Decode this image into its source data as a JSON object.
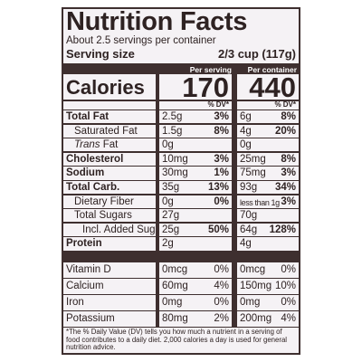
{
  "header": {
    "title": "Nutrition Facts",
    "servings": "About 2.5 servings per container",
    "serving_size_label": "Serving size",
    "serving_size": "2/3 cup (117g)"
  },
  "calories": {
    "label": "Calories",
    "per_serving_header": "Per serving",
    "per_container_header": "Per container",
    "per_serving": "170",
    "per_container": "440"
  },
  "dv_header": "% DV*",
  "nutrients": [
    {
      "name": "Total Fat",
      "bold": true,
      "indent": 0,
      "serving_amount": "2.5g",
      "serving_dv": "3%",
      "container_amount": "6g",
      "container_dv": "8%"
    },
    {
      "name": "Saturated Fat",
      "bold": false,
      "indent": 1,
      "serving_amount": "1.5g",
      "serving_dv": "8%",
      "container_amount": "4g",
      "container_dv": "20%"
    },
    {
      "name": "Trans Fat",
      "bold": false,
      "indent": 1,
      "italic_first_word": true,
      "serving_amount": "0g",
      "container_amount": "0g"
    },
    {
      "name": "Cholesterol",
      "bold": true,
      "indent": 0,
      "serving_amount": "10mg",
      "serving_dv": "3%",
      "container_amount": "25mg",
      "container_dv": "8%"
    },
    {
      "name": "Sodium",
      "bold": true,
      "indent": 0,
      "serving_amount": "30mg",
      "serving_dv": "1%",
      "container_amount": "75mg",
      "container_dv": "3%"
    },
    {
      "name": "Total Carb.",
      "bold": true,
      "indent": 0,
      "serving_amount": "35g",
      "serving_dv": "13%",
      "container_amount": "93g",
      "container_dv": "34%"
    },
    {
      "name": "Dietary Fiber",
      "bold": false,
      "indent": 1,
      "serving_amount": "0g",
      "serving_dv": "0%",
      "container_amount": "less than 1g",
      "container_dv": "3%"
    },
    {
      "name": "Total Sugars",
      "bold": false,
      "indent": 1,
      "serving_amount": "27g",
      "container_amount": "70g"
    },
    {
      "name": "Incl. Added Sugars",
      "bold": false,
      "indent": 2,
      "serving_amount": "25g",
      "serving_dv": "50%",
      "container_amount": "64g",
      "container_dv": "128%"
    },
    {
      "name": "Protein",
      "bold": true,
      "indent": 0,
      "serving_amount": "2g",
      "container_amount": "4g"
    }
  ],
  "vitamins": [
    {
      "name": "Vitamin D",
      "serving_amount": "0mcg",
      "serving_dv": "0%",
      "container_amount": "0mcg",
      "container_dv": "0%"
    },
    {
      "name": "Calcium",
      "serving_amount": "60mg",
      "serving_dv": "4%",
      "container_amount": "150mg",
      "container_dv": "10%"
    },
    {
      "name": "Iron",
      "serving_amount": "0mg",
      "serving_dv": "0%",
      "container_amount": "0mg",
      "container_dv": "0%"
    },
    {
      "name": "Potassium",
      "serving_amount": "80mg",
      "serving_dv": "2%",
      "container_amount": "200mg",
      "container_dv": "4%"
    }
  ],
  "footnote": "*The % Daily Value (DV) tells you how much a nutrient in a serving of food contributes to a daily diet. 2,000 calories a day is used for general nutrition advice."
}
